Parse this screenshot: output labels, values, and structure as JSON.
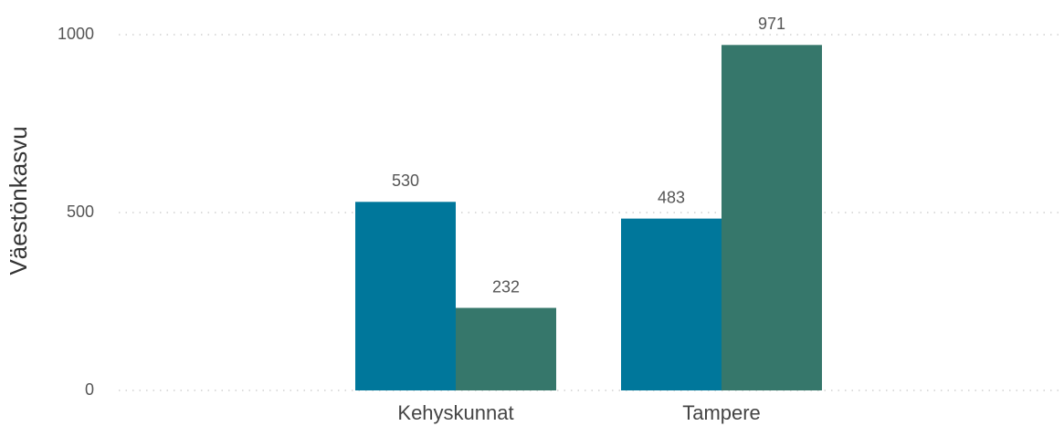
{
  "chart_data": {
    "type": "bar",
    "y_label": "Väestönkasvu",
    "categories": [
      "Kehyskunnat",
      "Tampere"
    ],
    "series": [
      {
        "color": "#00779b",
        "values": [
          530,
          483
        ]
      },
      {
        "color": "#36776b",
        "values": [
          232,
          971
        ]
      }
    ],
    "ylim": [
      0,
      1000
    ],
    "yticks": [
      0,
      500,
      1000
    ],
    "grid": true
  }
}
